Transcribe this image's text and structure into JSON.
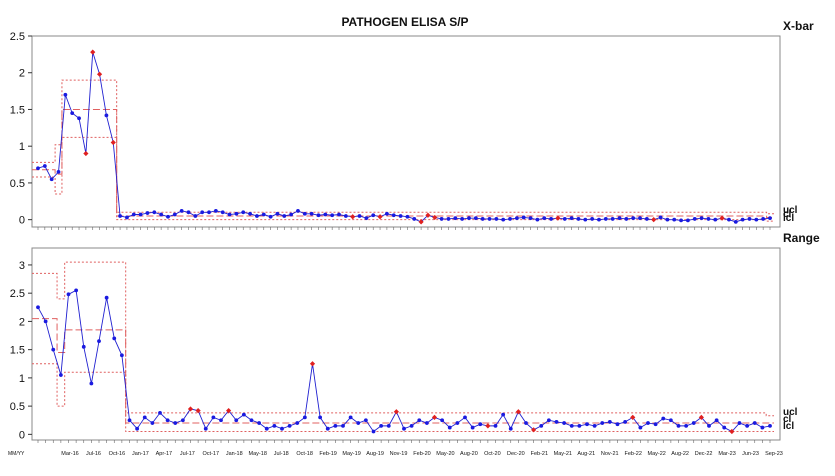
{
  "title": "PATHOGEN ELISA S/P",
  "xbar_label": "X-bar",
  "range_label": "Range",
  "limit_labels": {
    "ucl": "ucl",
    "cl": "cl",
    "lcl": "lcl"
  },
  "x_axis_prefix": "MM/YY",
  "colors": {
    "line": "#2020d0",
    "point": "#1a1ae0",
    "flag": "#e02020",
    "limit": "#e06060",
    "frame": "#888888"
  },
  "chart_data": [
    {
      "type": "line",
      "name": "X-bar",
      "ylim": [
        -0.1,
        2.5
      ],
      "yticks": [
        0,
        0.5,
        1,
        1.5,
        2,
        2.5
      ],
      "grid": false,
      "values": [
        0.7,
        0.73,
        0.55,
        0.65,
        1.7,
        1.45,
        1.38,
        0.9,
        2.28,
        1.98,
        1.42,
        1.05,
        0.05,
        0.03,
        0.07,
        0.07,
        0.09,
        0.1,
        0.07,
        0.04,
        0.07,
        0.12,
        0.1,
        0.05,
        0.1,
        0.1,
        0.12,
        0.1,
        0.07,
        0.08,
        0.1,
        0.08,
        0.05,
        0.07,
        0.04,
        0.08,
        0.05,
        0.07,
        0.12,
        0.08,
        0.08,
        0.06,
        0.07,
        0.06,
        0.07,
        0.05,
        0.04,
        0.05,
        0.02,
        0.06,
        0.04,
        0.08,
        0.06,
        0.05,
        0.04,
        0.01,
        -0.03,
        0.06,
        0.03,
        0.01,
        0.01,
        0.02,
        0.01,
        0.02,
        0.02,
        0.01,
        0.01,
        0.01,
        0.0,
        0.01,
        0.02,
        0.03,
        0.02,
        0.0,
        0.02,
        0.01,
        0.02,
        0.01,
        0.02,
        0.01,
        0.0,
        0.01,
        0.0,
        0.01,
        0.01,
        0.02,
        0.01,
        0.02,
        0.02,
        0.01,
        0.0,
        0.03,
        0.0,
        0.0,
        -0.01,
        -0.01,
        0.01,
        0.02,
        0.01,
        0.0,
        0.02,
        0.0,
        -0.03,
        0.0,
        0.01,
        0.0,
        0.01,
        0.02
      ],
      "flags": [
        7,
        8,
        9,
        11,
        46,
        50,
        56,
        57,
        58,
        76,
        90,
        100
      ],
      "limits": {
        "ucl": [
          [
            0,
            0.78
          ],
          [
            3,
            1.02
          ],
          [
            4,
            1.9
          ],
          [
            12,
            0.1
          ],
          [
            107,
            0.08
          ]
        ],
        "cl": [
          [
            0,
            0.68
          ],
          [
            3,
            0.62
          ],
          [
            4,
            1.5
          ],
          [
            12,
            0.05
          ],
          [
            107,
            0.03
          ]
        ],
        "lcl": [
          [
            0,
            0.58
          ],
          [
            3,
            0.35
          ],
          [
            4,
            1.12
          ],
          [
            12,
            0.0
          ],
          [
            107,
            -0.02
          ]
        ]
      }
    },
    {
      "type": "line",
      "name": "Range",
      "ylim": [
        -0.1,
        3.3
      ],
      "yticks": [
        0,
        0.5,
        1,
        1.5,
        2,
        2.5,
        3
      ],
      "grid": false,
      "values": [
        2.25,
        2.0,
        1.5,
        1.05,
        2.48,
        2.55,
        1.55,
        0.9,
        1.65,
        2.42,
        1.7,
        1.4,
        0.25,
        0.1,
        0.3,
        0.2,
        0.38,
        0.25,
        0.2,
        0.25,
        0.45,
        0.42,
        0.1,
        0.3,
        0.25,
        0.42,
        0.25,
        0.35,
        0.25,
        0.2,
        0.1,
        0.15,
        0.1,
        0.15,
        0.2,
        0.3,
        1.25,
        0.3,
        0.1,
        0.15,
        0.15,
        0.3,
        0.2,
        0.25,
        0.05,
        0.15,
        0.15,
        0.4,
        0.1,
        0.15,
        0.25,
        0.2,
        0.3,
        0.25,
        0.12,
        0.2,
        0.3,
        0.12,
        0.18,
        0.15,
        0.15,
        0.35,
        0.1,
        0.4,
        0.2,
        0.08,
        0.15,
        0.25,
        0.22,
        0.2,
        0.15,
        0.15,
        0.18,
        0.15,
        0.2,
        0.22,
        0.18,
        0.22,
        0.3,
        0.12,
        0.2,
        0.18,
        0.28,
        0.25,
        0.15,
        0.15,
        0.2,
        0.3,
        0.15,
        0.25,
        0.12,
        0.05,
        0.2,
        0.15,
        0.2,
        0.12,
        0.15
      ],
      "flags": [
        20,
        21,
        25,
        36,
        47,
        52,
        59,
        63,
        65,
        78,
        87,
        91
      ],
      "limits": {
        "ucl": [
          [
            0,
            2.85
          ],
          [
            3,
            2.4
          ],
          [
            4,
            3.05
          ],
          [
            12,
            0.38
          ],
          [
            96,
            0.33
          ]
        ],
        "cl": [
          [
            0,
            2.05
          ],
          [
            3,
            1.45
          ],
          [
            4,
            1.85
          ],
          [
            12,
            0.2
          ],
          [
            96,
            0.2
          ]
        ],
        "lcl": [
          [
            0,
            1.25
          ],
          [
            3,
            0.5
          ],
          [
            4,
            1.1
          ],
          [
            12,
            0.05
          ],
          [
            96,
            0.05
          ]
        ]
      }
    }
  ],
  "x_ticks": [
    "Mar-16",
    "Jul-16",
    "Oct-16",
    "Jan-17",
    "Apr-17",
    "Jul-17",
    "Oct-17",
    "Jan-18",
    "May-18",
    "Jul-18",
    "Oct-18",
    "Feb-19",
    "May-19",
    "Aug-19",
    "Nov-19",
    "Feb-20",
    "May-20",
    "Aug-20",
    "Oct-20",
    "Dec-20",
    "Feb-21",
    "May-21",
    "Aug-21",
    "Nov-21",
    "Feb-22",
    "May-22",
    "Aug-22",
    "Dec-22",
    "Mar-23",
    "Jun-23",
    "Sep-23"
  ]
}
